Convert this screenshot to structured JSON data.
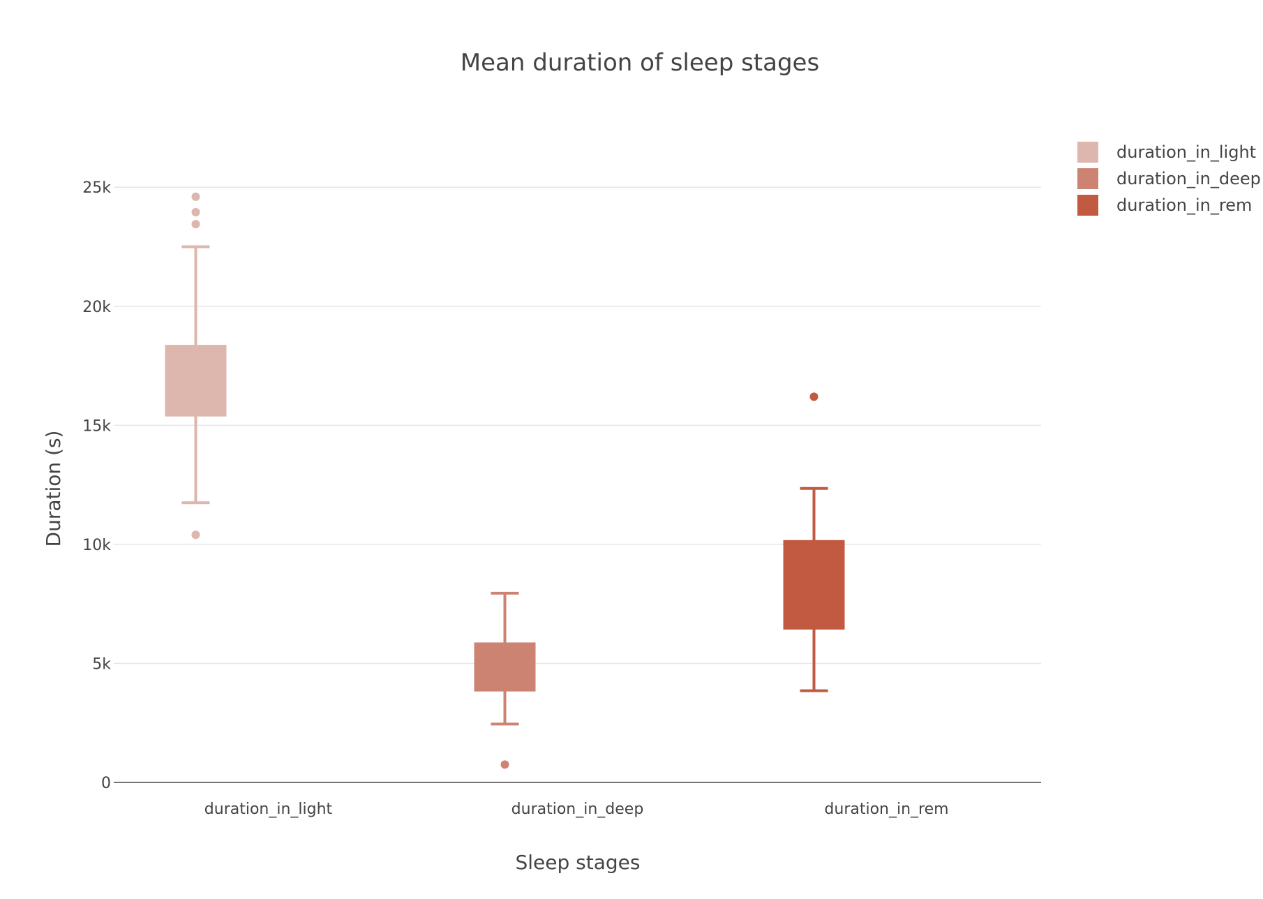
{
  "chart_data": {
    "type": "box",
    "title": "Mean duration of sleep stages",
    "xlabel": "Sleep stages",
    "ylabel": "Duration (s)",
    "ylim": [
      0,
      27000
    ],
    "yticks": [
      0,
      5000,
      10000,
      15000,
      20000,
      25000
    ],
    "ytick_labels": [
      "0",
      "5k",
      "10k",
      "15k",
      "20k",
      "25k"
    ],
    "grid": true,
    "legend_position": "top-right",
    "categories": [
      "duration_in_light",
      "duration_in_deep",
      "duration_in_rem"
    ],
    "series": [
      {
        "name": "duration_in_light",
        "color": "#ddb6ad",
        "lower_fence": 11750,
        "q1": 15400,
        "q3": 18350,
        "upper_fence": 22500,
        "outliers": [
          24600,
          23950,
          23450,
          10400
        ]
      },
      {
        "name": "duration_in_deep",
        "color": "#cd8372",
        "lower_fence": 2450,
        "q1": 3850,
        "q3": 5850,
        "upper_fence": 7950,
        "outliers": [
          750
        ]
      },
      {
        "name": "duration_in_rem",
        "color": "#c15a40",
        "lower_fence": 3850,
        "q1": 6450,
        "q3": 10150,
        "upper_fence": 12350,
        "outliers": [
          16200
        ]
      }
    ]
  }
}
